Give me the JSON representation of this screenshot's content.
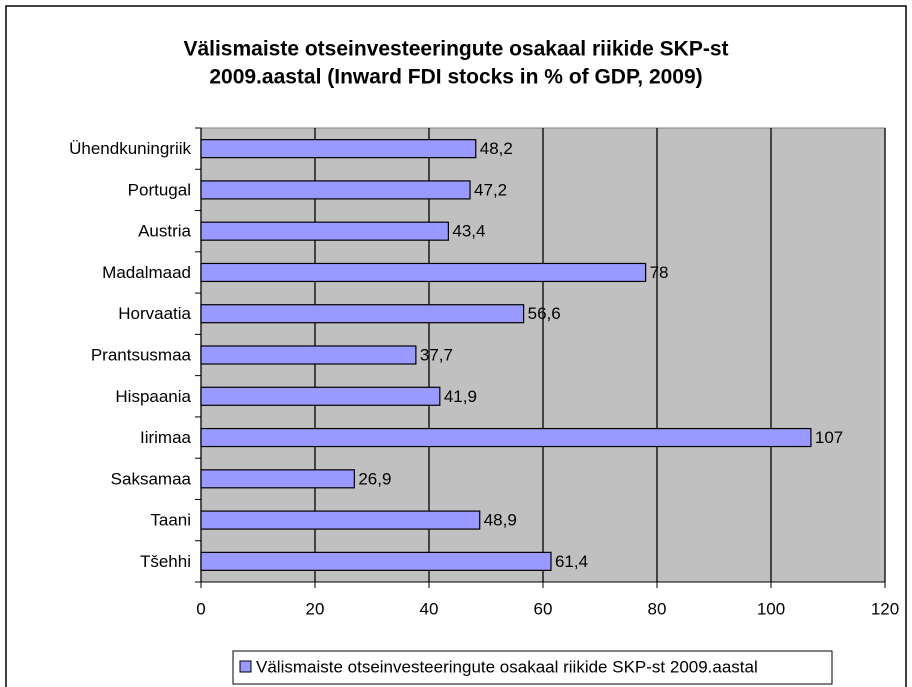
{
  "chart_data": {
    "type": "barh",
    "title": [
      "Välismaiste otseinvesteeringute osakaal riikide SKP-st",
      "2009.aastal (Inward FDI stocks in % of GDP, 2009)"
    ],
    "categories": [
      "Ühendkuningriik",
      "Portugal",
      "Austria",
      "Madalmaad",
      "Horvaatia",
      "Prantsusmaa",
      "Hispaania",
      "Iirimaa",
      "Saksamaa",
      "Taani",
      "Tšehhi"
    ],
    "series": [
      {
        "name": "Välismaiste otseinvesteeringute osakaal riikide SKP-st  2009.aastal",
        "color": "#9999ff",
        "values": [
          48.2,
          47.2,
          43.4,
          78,
          56.6,
          37.7,
          41.9,
          107,
          26.9,
          48.9,
          61.4
        ],
        "value_labels": [
          "48,2",
          "47,2",
          "43,4",
          "78",
          "56,6",
          "37,7",
          "41,9",
          "107",
          "26,9",
          "48,9",
          "61,4"
        ]
      }
    ],
    "xlim": [
      0,
      120
    ],
    "xticks": [
      0,
      20,
      40,
      60,
      80,
      100,
      120
    ],
    "grid": true,
    "legend": "bottom"
  }
}
